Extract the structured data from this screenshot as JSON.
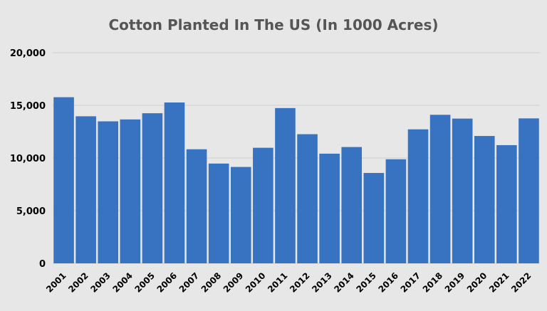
{
  "chart_data": {
    "type": "bar",
    "title": "Cotton Planted In The US (In 1000 Acres)",
    "xlabel": "",
    "ylabel": "",
    "ylim": [
      0,
      20000
    ],
    "yticks": [
      0,
      5000,
      10000,
      15000,
      20000
    ],
    "ytick_labels": [
      "0",
      "5,000",
      "10,000",
      "15,000",
      "20,000"
    ],
    "grid": true,
    "legend": "none",
    "bar_color": "#3873c1",
    "categories": [
      "2001",
      "2002",
      "2003",
      "2004",
      "2005",
      "2006",
      "2007",
      "2008",
      "2009",
      "2010",
      "2011",
      "2012",
      "2013",
      "2014",
      "2015",
      "2016",
      "2017",
      "2018",
      "2019",
      "2020",
      "2021",
      "2022"
    ],
    "values": [
      15770,
      13960,
      13480,
      13660,
      14250,
      15270,
      10830,
      9470,
      9150,
      10970,
      14740,
      12260,
      10410,
      11040,
      8580,
      9880,
      12720,
      14100,
      13740,
      12090,
      11220,
      13760
    ]
  }
}
